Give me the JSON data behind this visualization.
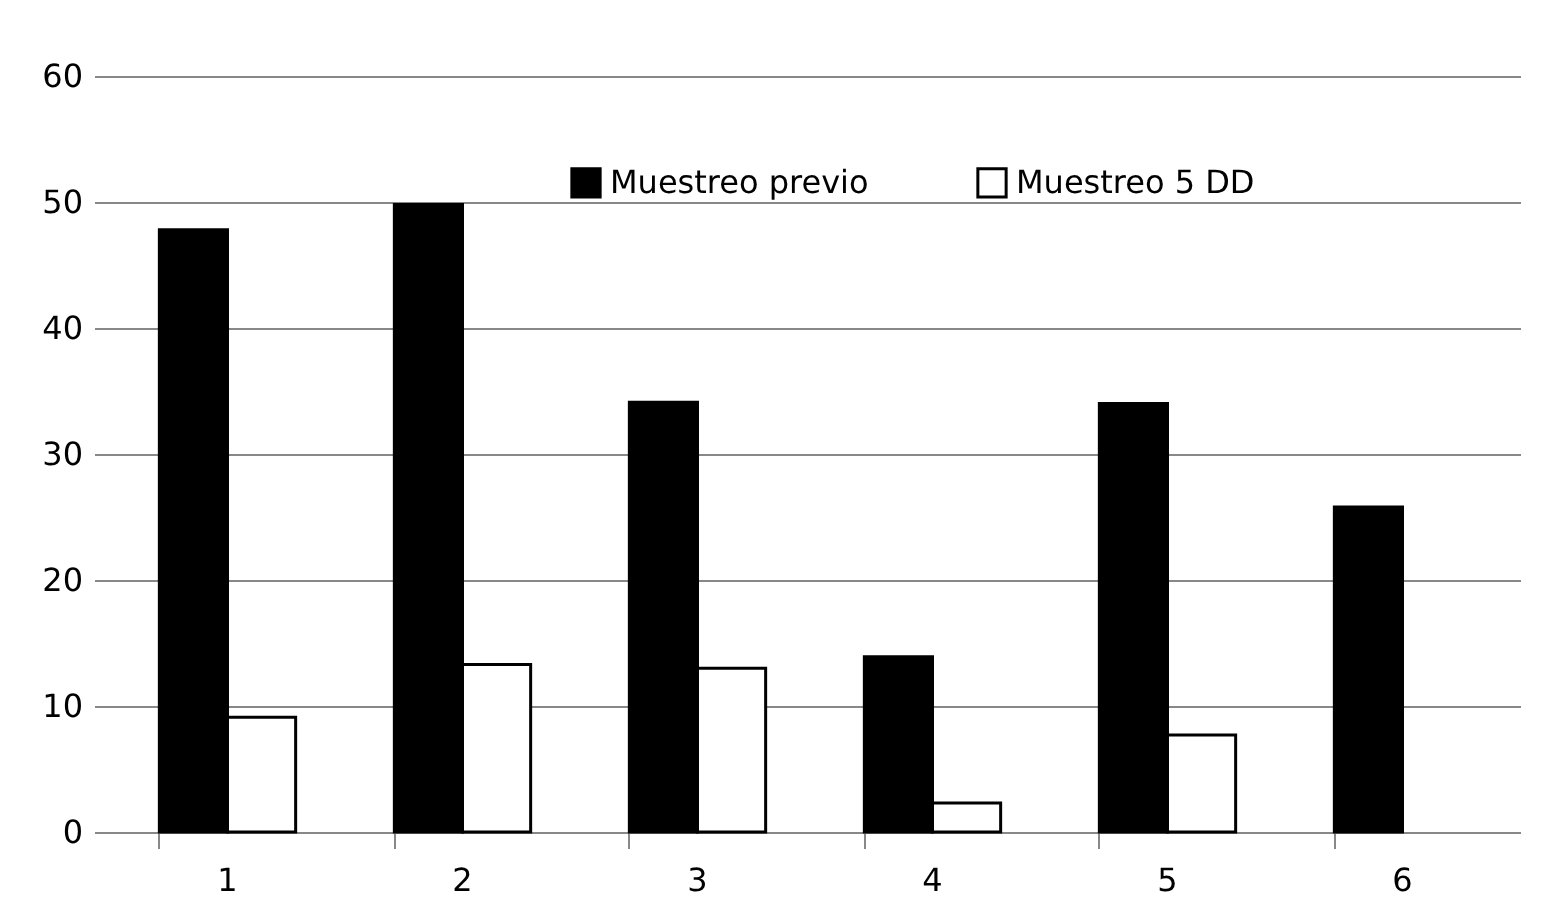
{
  "chart_data": {
    "type": "bar",
    "categories": [
      "1",
      "2",
      "3",
      "4",
      "5",
      "6"
    ],
    "series": [
      {
        "name": "Muestreo previo",
        "color": "#000000",
        "values": [
          47.8,
          49.8,
          34.1,
          13.9,
          34.0,
          25.8
        ]
      },
      {
        "name": "Muestreo 5 DD",
        "color": "#ffffff",
        "values": [
          9.1,
          13.3,
          13.0,
          2.3,
          7.7,
          0
        ]
      }
    ],
    "ylim": [
      0,
      60
    ],
    "yticks": [
      0,
      10,
      20,
      30,
      40,
      50,
      60
    ],
    "grid": "y",
    "legend": "top"
  }
}
